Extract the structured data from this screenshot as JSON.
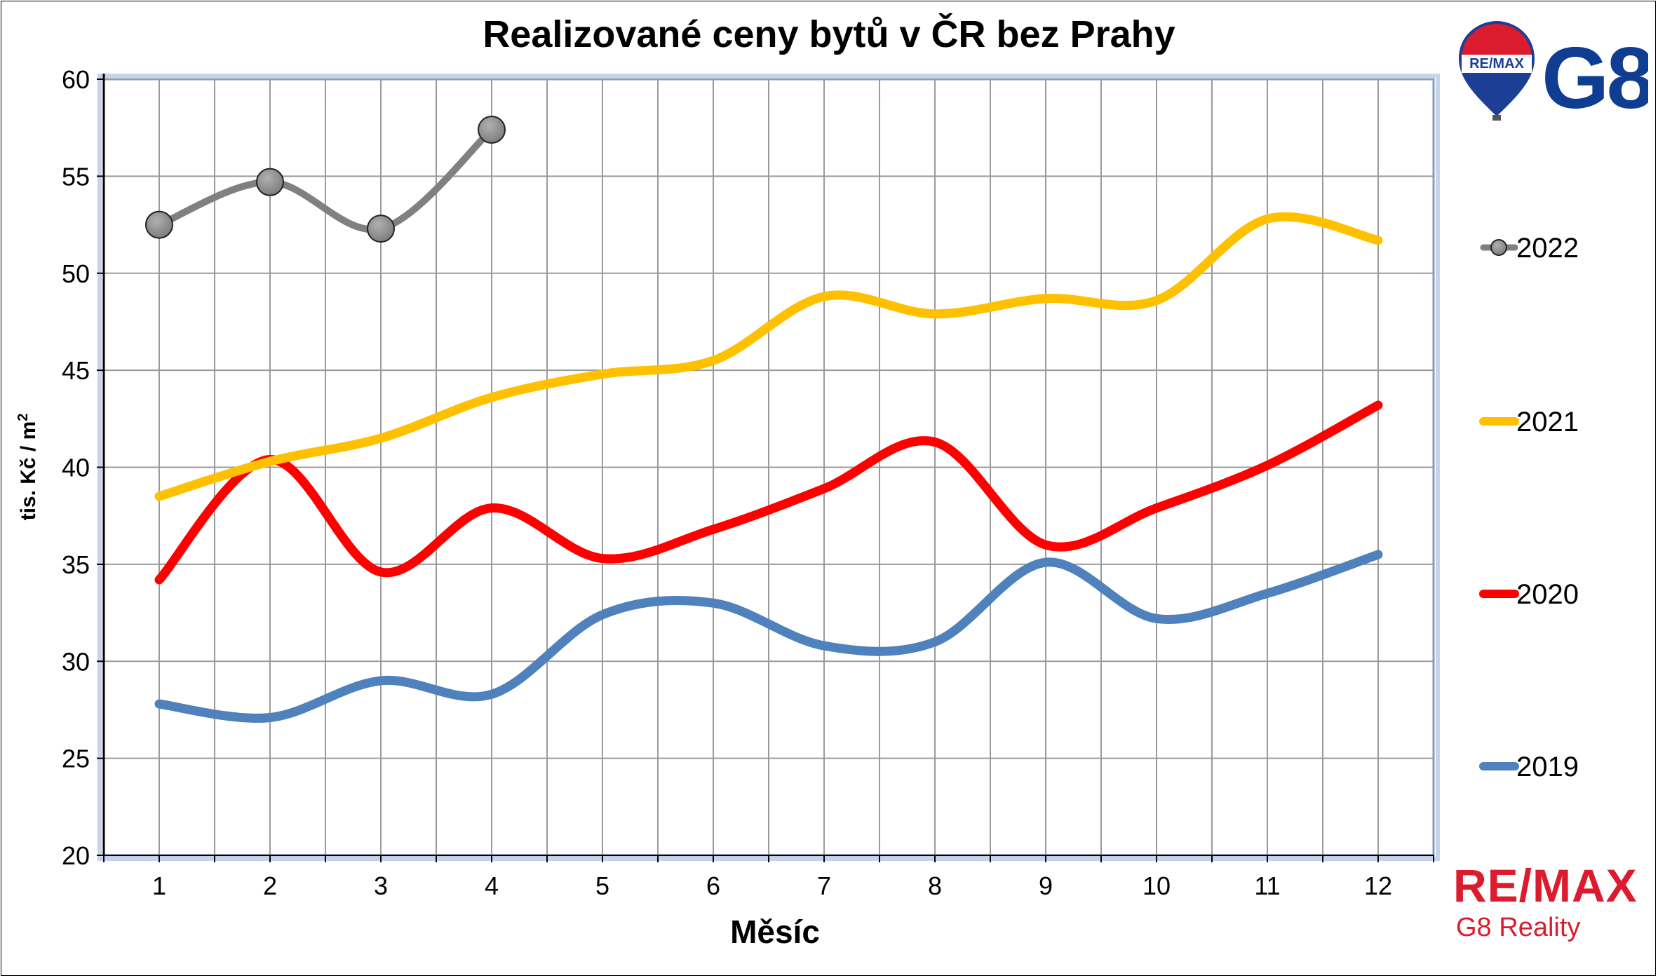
{
  "chart_data": {
    "type": "line",
    "title": "Realizované ceny bytů v ČR bez Prahy",
    "xlabel": "Měsíc",
    "ylabel": "tis. Kč / m²",
    "x": [
      1,
      2,
      3,
      4,
      5,
      6,
      7,
      8,
      9,
      10,
      11,
      12
    ],
    "x_tick_labels": [
      "1",
      "2",
      "3",
      "4",
      "5",
      "6",
      "7",
      "8",
      "9",
      "10",
      "11",
      "12"
    ],
    "xlim": [
      0.5,
      12.5
    ],
    "ylim": [
      20,
      60
    ],
    "y_ticks": [
      20,
      25,
      30,
      35,
      40,
      45,
      50,
      55,
      60
    ],
    "y_tick_labels": [
      "20",
      "25",
      "30",
      "35",
      "40",
      "45",
      "50",
      "55",
      "60"
    ],
    "grid": true,
    "legend_position": "right",
    "series": [
      {
        "name": "2022",
        "color": "#808080",
        "marker": "circle",
        "values": [
          52.5,
          54.7,
          52.3,
          57.4,
          null,
          null,
          null,
          null,
          null,
          null,
          null,
          null
        ]
      },
      {
        "name": "2021",
        "color": "#ffc000",
        "marker": "none",
        "values": [
          38.5,
          40.3,
          41.5,
          43.6,
          44.8,
          45.5,
          48.8,
          47.9,
          48.7,
          48.6,
          52.8,
          51.7
        ]
      },
      {
        "name": "2020",
        "color": "#ff0000",
        "marker": "none",
        "values": [
          34.2,
          40.4,
          34.6,
          37.9,
          35.3,
          36.8,
          38.9,
          41.3,
          36.0,
          37.9,
          40.1,
          43.2
        ]
      },
      {
        "name": "2019",
        "color": "#4f81bd",
        "marker": "none",
        "values": [
          27.8,
          27.1,
          29.0,
          28.3,
          32.4,
          33.0,
          30.8,
          31.0,
          35.1,
          32.2,
          33.5,
          35.5
        ]
      }
    ]
  },
  "branding": {
    "remax_wordmark": "RE/MAX",
    "remax_subtitle": "G8 Reality",
    "logo_badge_text": "G8",
    "balloon_text": "RE/MAX",
    "brand_red": "#dc1c2e",
    "brand_blue": "#0f3d91"
  }
}
